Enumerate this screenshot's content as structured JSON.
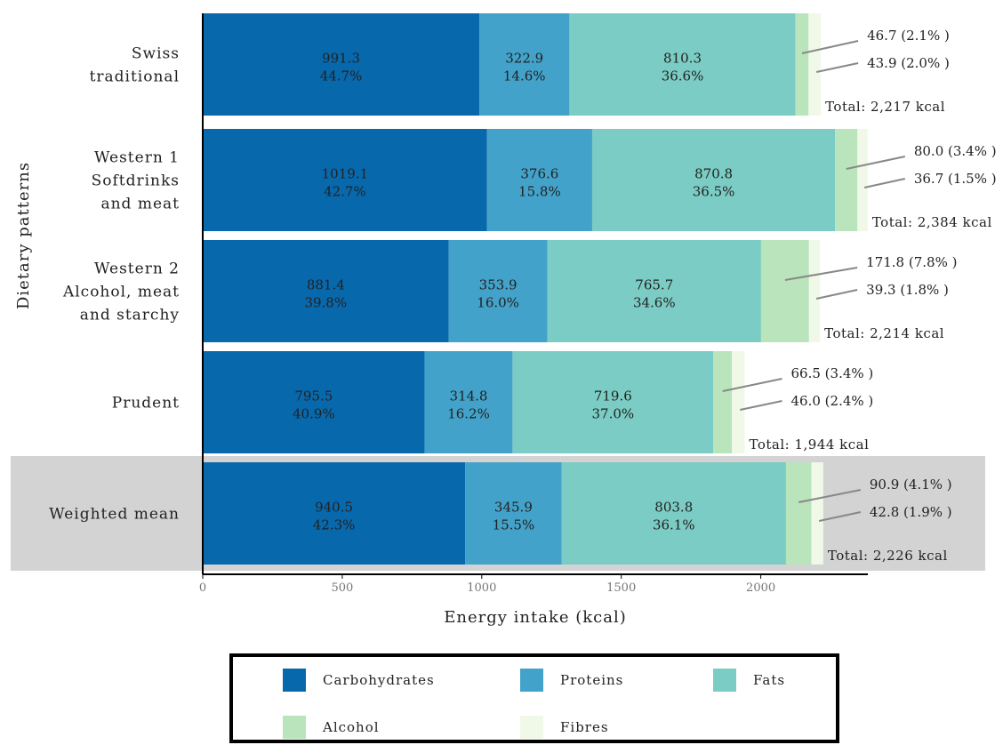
{
  "chart_data": {
    "type": "bar",
    "orientation": "horizontal",
    "stacked": true,
    "ylabel": "Dietary patterns",
    "xlabel": "Energy intake (kcal)",
    "xlim": [
      0,
      2384
    ],
    "xticks": [
      "0",
      "500",
      "1000",
      "1500",
      "2000"
    ],
    "xtick_values": [
      0,
      500,
      1000,
      1500,
      2000
    ],
    "grid": false,
    "legend_position": "bottom",
    "categories": [
      [
        "Swiss",
        "traditional"
      ],
      [
        "Western 1",
        "Softdrinks",
        "and meat"
      ],
      [
        "Western 2",
        "Alcohol, meat",
        "and starchy"
      ],
      [
        "Prudent"
      ],
      [
        "Weighted mean"
      ]
    ],
    "highlighted_category_index": 4,
    "series": [
      {
        "name": "Carbohydrates",
        "color": "#0868ac",
        "values": [
          991.3,
          1019.1,
          881.4,
          795.5,
          940.5
        ],
        "pct": [
          "44.7%",
          "42.7%",
          "39.8%",
          "40.9%",
          "42.3%"
        ]
      },
      {
        "name": "Proteins",
        "color": "#43a2ca",
        "values": [
          322.9,
          376.6,
          353.9,
          314.8,
          345.9
        ],
        "pct": [
          "14.6%",
          "15.8%",
          "16.0%",
          "16.2%",
          "15.5%"
        ]
      },
      {
        "name": "Fats",
        "color": "#7bccc4",
        "values": [
          810.3,
          870.8,
          765.7,
          719.6,
          803.8
        ],
        "pct": [
          "36.6%",
          "36.5%",
          "34.6%",
          "37.0%",
          "36.1%"
        ]
      },
      {
        "name": "Alcohol",
        "color": "#bae4bc",
        "values": [
          46.7,
          80.0,
          171.8,
          66.5,
          90.9
        ],
        "pct": [
          "2.1%",
          "3.4%",
          "7.8%",
          "3.4%",
          "4.1%"
        ]
      },
      {
        "name": "Fibres",
        "color": "#f0f9e8",
        "values": [
          43.9,
          36.7,
          39.3,
          46.0,
          42.8
        ],
        "pct": [
          "2.0%",
          "1.5%",
          "1.8%",
          "2.4%",
          "1.9%"
        ]
      }
    ],
    "annotations": {
      "alcohol": [
        "46.7 (2.1% )",
        "80.0 (3.4% )",
        "171.8 (7.8% )",
        "66.5 (3.4% )",
        "90.9 (4.1% )"
      ],
      "fibres": [
        "43.9 (2.0% )",
        "36.7 (1.5% )",
        "39.3 (1.8% )",
        "46.0 (2.4% )",
        "42.8 (1.9% )"
      ]
    },
    "totals": [
      "Total: 2,217 kcal",
      "Total: 2,384 kcal",
      "Total: 2,214 kcal",
      "Total: 1,944 kcal",
      "Total: 2,226 kcal"
    ],
    "legend": [
      {
        "label": "Carbohydrates",
        "color": "#0868ac"
      },
      {
        "label": "Proteins",
        "color": "#43a2ca"
      },
      {
        "label": "Fats",
        "color": "#7bccc4"
      },
      {
        "label": "Alcohol",
        "color": "#bae4bc"
      },
      {
        "label": "Fibres",
        "color": "#f0f9e8"
      }
    ]
  }
}
